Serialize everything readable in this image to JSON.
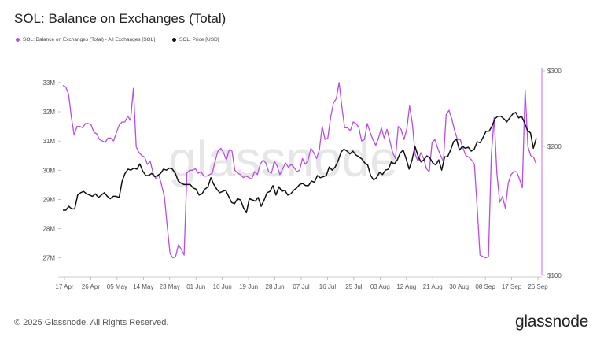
{
  "title": "SOL: Balance on Exchanges (Total)",
  "footer": "© 2025 Glassnode. All Rights Reserved.",
  "brand": "glassnode",
  "watermark": "glassnode",
  "colors": {
    "balance": "#b54ee6",
    "price": "#111111",
    "axis": "#c56cf0"
  },
  "chart_data": {
    "type": "line",
    "legend": [
      {
        "name": "SOL: Balance on Exchanges (Total) - All Exchanges [SOL]",
        "color": "#b54ee6"
      },
      {
        "name": "SOL: Price [USD]",
        "color": "#111111"
      }
    ],
    "x_tick_labels": [
      "17 Apr",
      "26 Apr",
      "05 May",
      "14 May",
      "23 May",
      "01 Jun",
      "10 Jun",
      "19 Jun",
      "28 Jun",
      "07 Jul",
      "16 Jul",
      "25 Jul",
      "03 Aug",
      "12 Aug",
      "21 Aug",
      "30 Aug",
      "08 Sep",
      "17 Sep",
      "26 Sep"
    ],
    "y_left": {
      "unit": "SOL",
      "ticks": [
        "27M",
        "28M",
        "29M",
        "30M",
        "31M",
        "32M",
        "33M"
      ],
      "range": [
        26.4,
        33.4
      ]
    },
    "y_right": {
      "unit": "USD",
      "scale": "log",
      "ticks": [
        "$100",
        "$200",
        "$300"
      ],
      "range": [
        100,
        300
      ]
    },
    "grid": false,
    "legend_position": "top-left",
    "series": [
      {
        "name": "SOL: Balance on Exchanges (Total) - All Exchanges [SOL]",
        "axis": "left",
        "values": [
          32.9,
          32.85,
          32.6,
          31.8,
          31.2,
          31.5,
          31.5,
          31.45,
          31.6,
          31.6,
          31.55,
          31.3,
          31.25,
          31.05,
          31.0,
          30.95,
          31.1,
          31.1,
          31.0,
          31.3,
          31.55,
          31.65,
          31.65,
          31.85,
          31.7,
          32.8,
          30.8,
          30.6,
          30.5,
          30.45,
          30.2,
          30.3,
          29.9,
          29.7,
          29.85,
          29.5,
          29.1,
          28.1,
          27.15,
          27.0,
          27.05,
          27.45,
          27.3,
          27.1,
          29.9,
          30.0,
          30.0,
          30.05,
          29.9,
          29.95,
          29.8,
          29.8,
          29.85,
          29.9,
          30.3,
          30.65,
          30.75,
          30.6,
          30.35,
          30.7,
          30.65,
          30.0,
          29.9,
          29.85,
          29.75,
          29.8,
          29.75,
          29.7,
          29.95,
          29.85,
          30.2,
          30.35,
          30.25,
          29.95,
          29.9,
          30.3,
          30.15,
          29.85,
          30.05,
          30.25,
          30.1,
          30.2,
          30.1,
          29.95,
          30.0,
          30.4,
          30.2,
          30.35,
          30.75,
          30.6,
          30.4,
          30.7,
          31.5,
          31.05,
          31.1,
          31.8,
          32.3,
          32.45,
          33.0,
          32.15,
          31.45,
          31.45,
          31.35,
          31.65,
          31.6,
          31.45,
          31.0,
          31.05,
          31.6,
          31.3,
          31.05,
          30.85,
          31.1,
          31.45,
          31.1,
          31.4,
          31.0,
          30.6,
          30.4,
          31.5,
          31.4,
          31.05,
          31.4,
          32.2,
          31.6,
          30.55,
          30.3,
          30.6,
          30.4,
          30.05,
          29.95,
          30.95,
          31.05,
          30.75,
          30.5,
          30.3,
          31.9,
          32.05,
          31.75,
          31.35,
          31.05,
          31.05,
          30.75,
          30.5,
          30.45,
          30.35,
          30.2,
          28.7,
          27.1,
          27.05,
          27.0,
          27.05,
          30.5,
          31.8,
          29.9,
          28.9,
          29.1,
          28.7,
          29.55,
          29.85,
          29.95,
          29.95,
          29.7,
          29.4,
          32.75,
          30.8,
          30.5,
          30.45,
          30.2
        ]
      },
      {
        "name": "SOL: Price [USD]",
        "axis": "right",
        "values": [
          142,
          142,
          145,
          143,
          143,
          154,
          156,
          157,
          155,
          154,
          153,
          155,
          152,
          154,
          156,
          153,
          151,
          153,
          153,
          152,
          166,
          173,
          177,
          176,
          178,
          177,
          182,
          175,
          171,
          171,
          173,
          170,
          171,
          173,
          177,
          176,
          178,
          177,
          173,
          166,
          164,
          163,
          163,
          163,
          160,
          159,
          154,
          155,
          159,
          161,
          169,
          163,
          159,
          156,
          157,
          158,
          153,
          148,
          147,
          151,
          150,
          144,
          140,
          151,
          150,
          149,
          152,
          145,
          150,
          156,
          157,
          162,
          154,
          161,
          157,
          158,
          154,
          155,
          158,
          160,
          163,
          164,
          162,
          162,
          166,
          165,
          171,
          169,
          170,
          171,
          179,
          176,
          179,
          185,
          194,
          197,
          195,
          192,
          195,
          191,
          189,
          187,
          183,
          181,
          171,
          167,
          169,
          174,
          172,
          176,
          177,
          184,
          182,
          186,
          193,
          196,
          187,
          177,
          186,
          200,
          190,
          184,
          186,
          190,
          188,
          183,
          181,
          186,
          176,
          189,
          189,
          196,
          205,
          208,
          196,
          200,
          198,
          199,
          195,
          197,
          205,
          204,
          210,
          217,
          217,
          223,
          232,
          235,
          235,
          232,
          228,
          233,
          238,
          240,
          233,
          235,
          227,
          218,
          215,
          198,
          209
        ]
      }
    ]
  }
}
